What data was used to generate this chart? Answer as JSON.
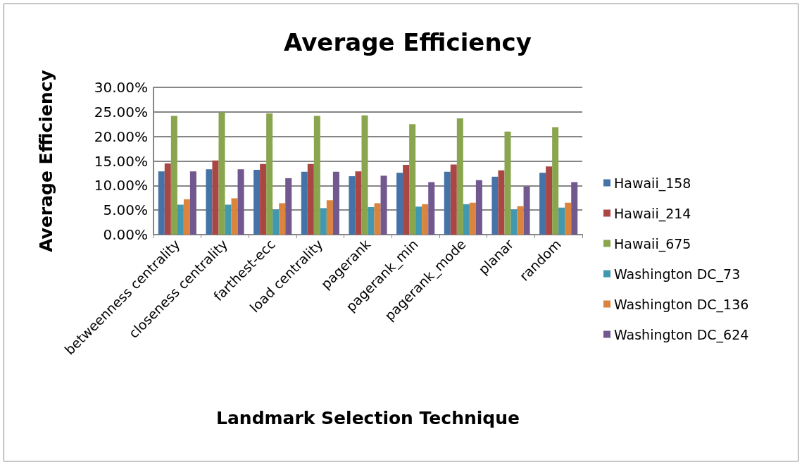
{
  "chart_data": {
    "type": "bar",
    "title": "Average Efficiency",
    "xlabel": "Landmark Selection Technique",
    "ylabel": "Average Efficiency",
    "categories": [
      "betweenness centrality",
      "closeness centrality",
      "farthest-ecc",
      "load centrality",
      "pagerank",
      "pagerank_min",
      "pagerank_mode",
      "planar",
      "random"
    ],
    "series": [
      {
        "name": "Hawaii_158",
        "color": "#4572a7",
        "values": [
          12.9,
          13.3,
          13.2,
          12.8,
          11.9,
          12.6,
          12.8,
          11.8,
          12.6
        ]
      },
      {
        "name": "Hawaii_214",
        "color": "#aa4643",
        "values": [
          14.5,
          15.1,
          14.4,
          14.4,
          12.9,
          14.2,
          14.3,
          13.1,
          13.9
        ]
      },
      {
        "name": "Hawaii_675",
        "color": "#89a54e",
        "values": [
          24.2,
          24.9,
          24.7,
          24.2,
          24.3,
          22.5,
          23.7,
          21.0,
          21.9
        ]
      },
      {
        "name": "Washington DC_73",
        "color": "#4198af",
        "values": [
          6.1,
          6.1,
          5.1,
          5.4,
          5.6,
          5.7,
          6.2,
          5.1,
          5.5
        ]
      },
      {
        "name": "Washington DC_136",
        "color": "#db843d",
        "values": [
          7.2,
          7.4,
          6.4,
          7.0,
          6.4,
          6.2,
          6.5,
          5.8,
          6.5
        ]
      },
      {
        "name": "Washington DC_624",
        "color": "#71588f",
        "values": [
          12.9,
          13.3,
          11.5,
          12.8,
          12.0,
          10.7,
          11.1,
          9.8,
          10.7
        ]
      }
    ],
    "ylim": [
      0,
      30
    ],
    "yticks": [
      {
        "value": 0,
        "label": "0.00%"
      },
      {
        "value": 5,
        "label": "5.00%"
      },
      {
        "value": 10,
        "label": "10.00%"
      },
      {
        "value": 15,
        "label": "15.00%"
      },
      {
        "value": 20,
        "label": "20.00%"
      },
      {
        "value": 25,
        "label": "25.00%"
      },
      {
        "value": 30,
        "label": "30.00%"
      }
    ],
    "grid": "y",
    "legend": "right"
  }
}
